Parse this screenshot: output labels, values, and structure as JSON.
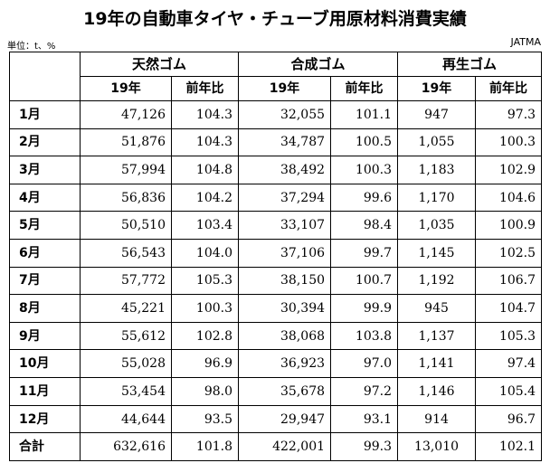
{
  "title": "19年の自動車タイヤ・チューブ用原材料消費実績",
  "unit": "単位：t、%",
  "source": "JATMA",
  "table": {
    "groups": [
      "天然ゴム",
      "合成ゴム",
      "再生ゴム"
    ],
    "subheaders": [
      "19年",
      "前年比",
      "19年",
      "前年比",
      "19年",
      "前年比"
    ],
    "rows": [
      {
        "month": "1月",
        "natural": "47,126",
        "natural_yoy": "104.3",
        "synthetic": "32,055",
        "synthetic_yoy": "101.1",
        "reclaimed": "947",
        "reclaimed_yoy": "97.3"
      },
      {
        "month": "2月",
        "natural": "51,876",
        "natural_yoy": "104.3",
        "synthetic": "34,787",
        "synthetic_yoy": "100.5",
        "reclaimed": "1,055",
        "reclaimed_yoy": "100.3"
      },
      {
        "month": "3月",
        "natural": "57,994",
        "natural_yoy": "104.8",
        "synthetic": "38,492",
        "synthetic_yoy": "100.3",
        "reclaimed": "1,183",
        "reclaimed_yoy": "102.9"
      },
      {
        "month": "4月",
        "natural": "56,836",
        "natural_yoy": "104.2",
        "synthetic": "37,294",
        "synthetic_yoy": "99.6",
        "reclaimed": "1,170",
        "reclaimed_yoy": "104.6"
      },
      {
        "month": "5月",
        "natural": "50,510",
        "natural_yoy": "103.4",
        "synthetic": "33,107",
        "synthetic_yoy": "98.4",
        "reclaimed": "1,035",
        "reclaimed_yoy": "100.9"
      },
      {
        "month": "6月",
        "natural": "56,543",
        "natural_yoy": "104.0",
        "synthetic": "37,106",
        "synthetic_yoy": "99.7",
        "reclaimed": "1,145",
        "reclaimed_yoy": "102.5"
      },
      {
        "month": "7月",
        "natural": "57,772",
        "natural_yoy": "105.3",
        "synthetic": "38,150",
        "synthetic_yoy": "100.7",
        "reclaimed": "1,192",
        "reclaimed_yoy": "106.7"
      },
      {
        "month": "8月",
        "natural": "45,221",
        "natural_yoy": "100.3",
        "synthetic": "30,394",
        "synthetic_yoy": "99.9",
        "reclaimed": "945",
        "reclaimed_yoy": "104.7"
      },
      {
        "month": "9月",
        "natural": "55,612",
        "natural_yoy": "102.8",
        "synthetic": "38,068",
        "synthetic_yoy": "103.8",
        "reclaimed": "1,137",
        "reclaimed_yoy": "105.3"
      },
      {
        "month": "10月",
        "natural": "55,028",
        "natural_yoy": "96.9",
        "synthetic": "36,923",
        "synthetic_yoy": "97.0",
        "reclaimed": "1,141",
        "reclaimed_yoy": "97.4"
      },
      {
        "month": "11月",
        "natural": "53,454",
        "natural_yoy": "98.0",
        "synthetic": "35,678",
        "synthetic_yoy": "97.2",
        "reclaimed": "1,146",
        "reclaimed_yoy": "105.4"
      },
      {
        "month": "12月",
        "natural": "44,644",
        "natural_yoy": "93.5",
        "synthetic": "29,947",
        "synthetic_yoy": "93.1",
        "reclaimed": "914",
        "reclaimed_yoy": "96.7"
      }
    ],
    "total": {
      "label": "合計",
      "natural": "632,616",
      "natural_yoy": "101.8",
      "synthetic": "422,001",
      "synthetic_yoy": "99.3",
      "reclaimed": "13,010",
      "reclaimed_yoy": "102.1"
    }
  }
}
